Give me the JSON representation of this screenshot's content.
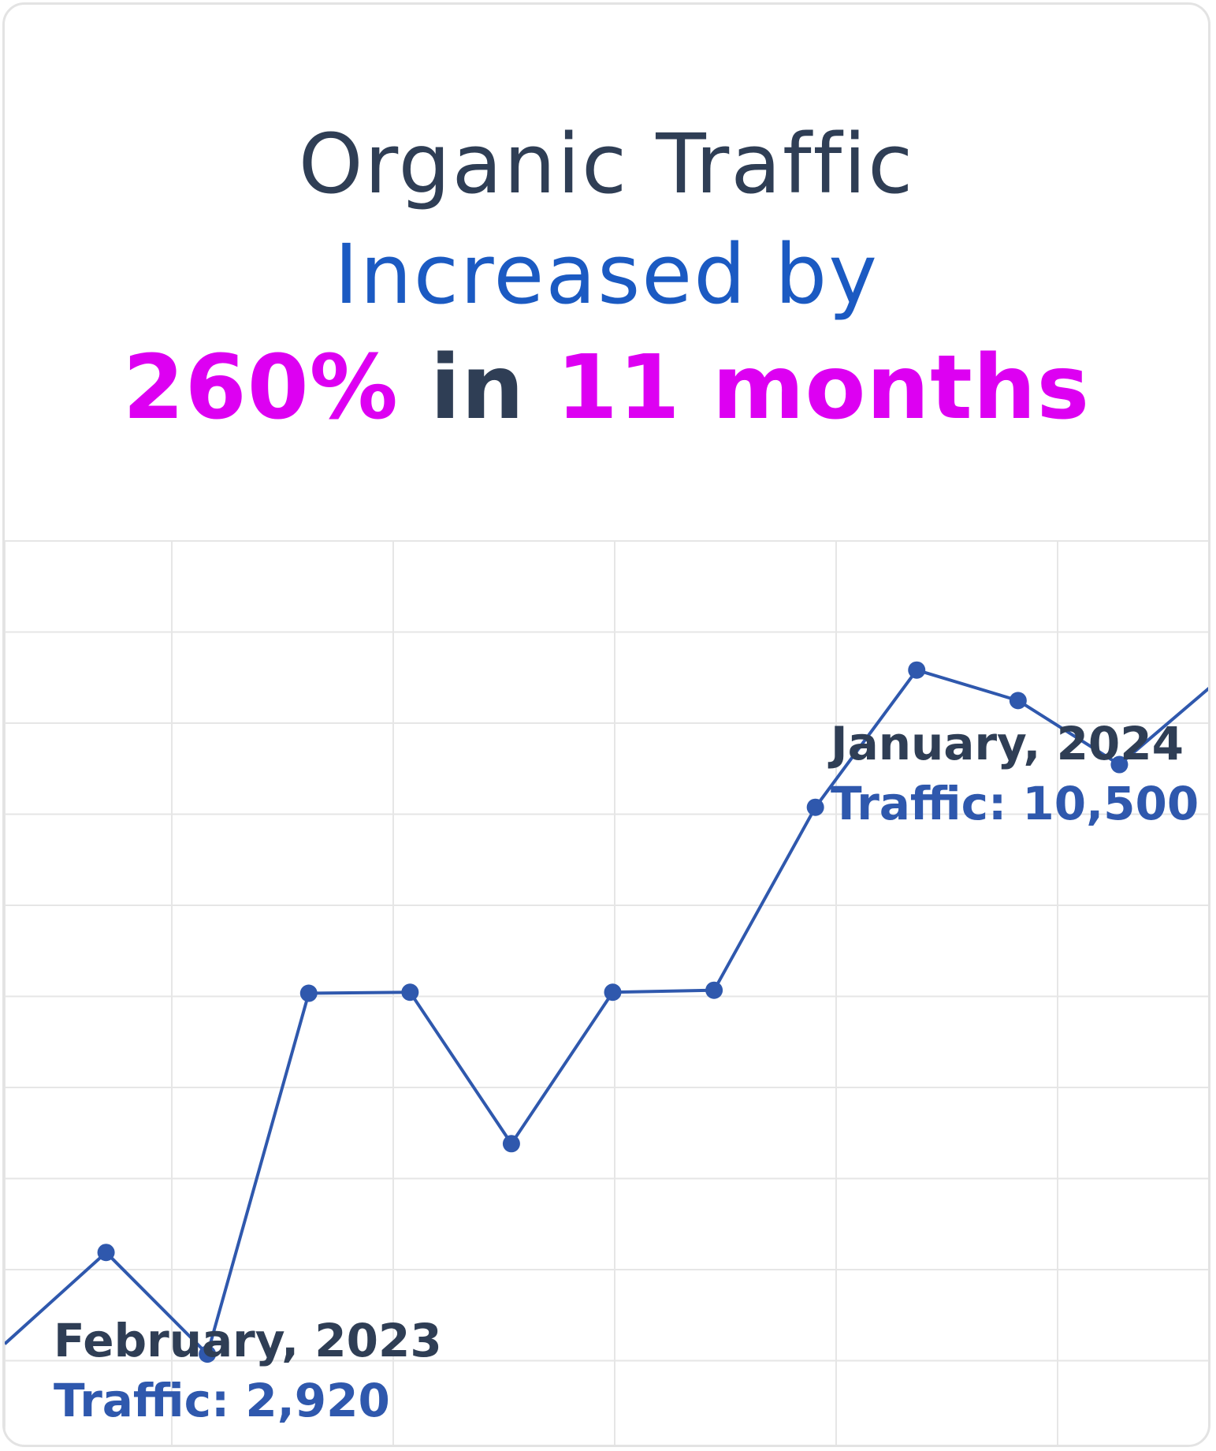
{
  "headline": {
    "line1": "Organic Traffic",
    "line2": "Increased by",
    "line3_percent": "260%",
    "line3_in": "in",
    "line3_period": "11 months"
  },
  "callouts": {
    "end": {
      "month": "January, 2024",
      "traffic": "Traffic: 10,500"
    },
    "start": {
      "month": "February, 2023",
      "traffic": "Traffic: 2,920"
    }
  },
  "colors": {
    "dark_text": "#2f3e55",
    "blue_text": "#1b5ac2",
    "accent": "#dd00f2",
    "series": "#2f58ad",
    "grid": "#e6e6e6"
  },
  "chart_data": {
    "type": "line",
    "title": "",
    "xlabel": "",
    "ylabel": "",
    "grid": true,
    "points": [
      {
        "x": 0.0,
        "y": 0.1
      },
      {
        "x": 0.5,
        "y": 1.0
      },
      {
        "x": 1.0,
        "y": 0.0
      },
      {
        "x": 1.5,
        "y": 3.55
      },
      {
        "x": 2.0,
        "y": 3.56
      },
      {
        "x": 2.5,
        "y": 2.07
      },
      {
        "x": 3.0,
        "y": 3.56
      },
      {
        "x": 3.5,
        "y": 3.58
      },
      {
        "x": 4.0,
        "y": 5.38
      },
      {
        "x": 4.5,
        "y": 6.73
      },
      {
        "x": 5.0,
        "y": 6.43
      },
      {
        "x": 5.5,
        "y": 5.8
      },
      {
        "x": 6.0,
        "y": 6.65
      }
    ],
    "marker_points": [
      1,
      2,
      3,
      4,
      5,
      6,
      7,
      8,
      9,
      10,
      11
    ],
    "xlim": [
      0,
      6.0
    ],
    "ylim": [
      -1.0,
      8.0
    ]
  }
}
